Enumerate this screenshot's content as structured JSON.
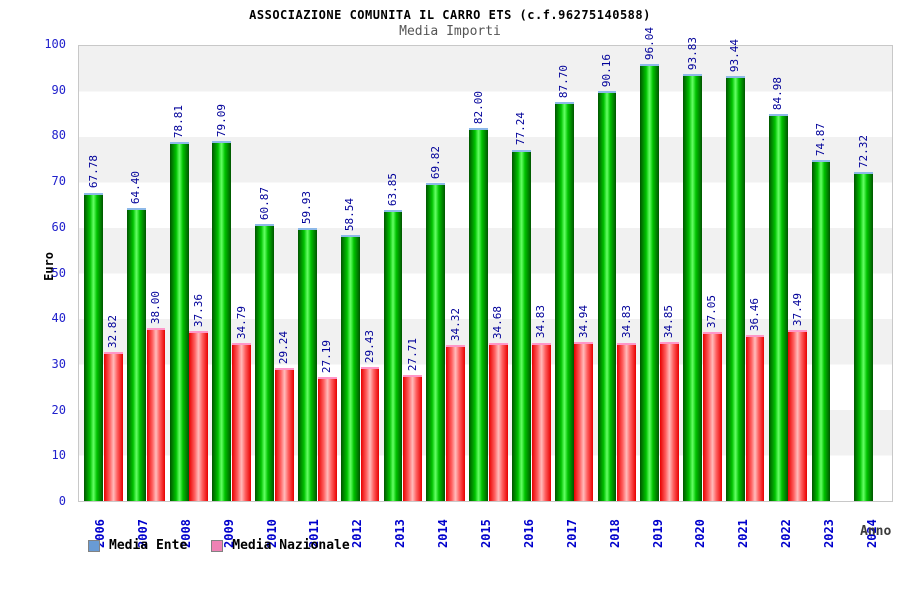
{
  "chart_data": {
    "type": "bar",
    "title": "ASSOCIAZIONE COMUNITA IL CARRO ETS (c.f.96275140588)",
    "subtitle": "Media Importi",
    "xlabel": "Anno",
    "ylabel": "Euro",
    "ylim": [
      0,
      100
    ],
    "y_ticks": [
      0,
      10,
      20,
      30,
      40,
      50,
      60,
      70,
      80,
      90,
      100
    ],
    "grid": "horizontal-alternating-bands",
    "legend_position": "bottom-left",
    "categories": [
      "2006",
      "2007",
      "2008",
      "2009",
      "2010",
      "2011",
      "2012",
      "2013",
      "2014",
      "2015",
      "2016",
      "2017",
      "2018",
      "2019",
      "2020",
      "2021",
      "2022",
      "2023",
      "2024"
    ],
    "series": [
      {
        "name": "Media Ente",
        "bar_style": "green-gradient",
        "values": [
          67.78,
          64.4,
          78.81,
          79.09,
          60.87,
          59.93,
          58.54,
          63.85,
          69.82,
          82.0,
          77.24,
          87.7,
          90.16,
          96.04,
          93.83,
          93.44,
          84.98,
          74.87,
          72.32
        ]
      },
      {
        "name": "Media Nazionale",
        "bar_style": "red-gradient",
        "values": [
          32.82,
          38.0,
          37.36,
          34.79,
          29.24,
          27.19,
          29.43,
          27.71,
          34.32,
          34.68,
          34.83,
          34.94,
          34.83,
          34.85,
          37.05,
          36.46,
          37.49,
          null,
          null
        ]
      }
    ]
  },
  "colors": {
    "green_dark": "#005500",
    "green_mid": "#00c300",
    "green_light": "#66ff66",
    "green_cap": "#8db9e8",
    "red_dark": "#e80000",
    "red_mid": "#ff6060",
    "red_light": "#ffbcbc",
    "red_cap": "#ff96c8",
    "band": "#f1f1f1",
    "plot_border": "#c8c8c8",
    "tick_blue": "#2121cc",
    "value_navy": "#000099",
    "year_blue": "#0000cc",
    "legend_blue": "#699bd4",
    "legend_pink": "#ee82b4",
    "legend_border": "#828282",
    "subtitle_gray": "#555555",
    "axis_label_dark": "#3c3c3c"
  }
}
